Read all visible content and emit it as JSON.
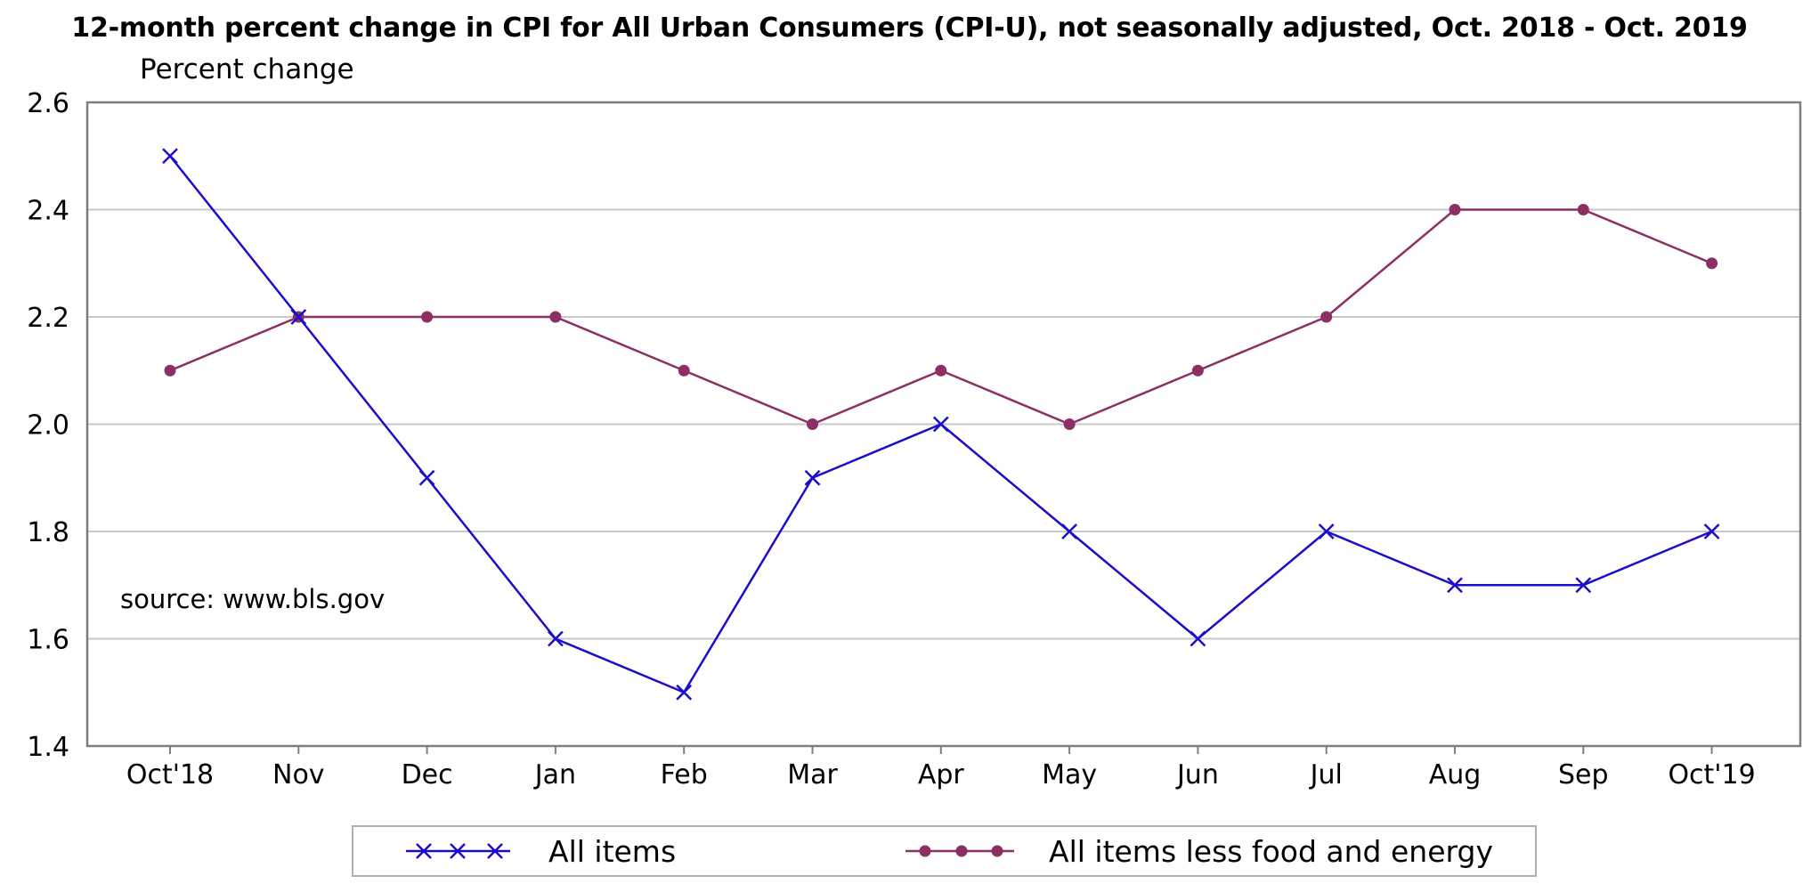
{
  "chart_data": {
    "type": "line",
    "title": "12-month percent change in CPI for All Urban Consumers (CPI-U), not seasonally adjusted, Oct. 2018 - Oct. 2019",
    "ylabel": "Percent change",
    "xlabel": "",
    "ylim": [
      1.4,
      2.6
    ],
    "yticks": [
      "1.4",
      "1.6",
      "1.8",
      "2.0",
      "2.2",
      "2.4",
      "2.6"
    ],
    "categories": [
      "Oct'18",
      "Nov",
      "Dec",
      "Jan",
      "Feb",
      "Mar",
      "Apr",
      "May",
      "Jun",
      "Jul",
      "Aug",
      "Sep",
      "Oct'19"
    ],
    "series": [
      {
        "name": "All items",
        "marker": "x",
        "color": "#1a0dcc",
        "values": [
          2.5,
          2.2,
          1.9,
          1.6,
          1.5,
          1.9,
          2.0,
          1.8,
          1.6,
          1.8,
          1.7,
          1.7,
          1.8
        ]
      },
      {
        "name": "All items less food and energy",
        "marker": "circle",
        "color": "#8c2f62",
        "values": [
          2.1,
          2.2,
          2.2,
          2.2,
          2.1,
          2.0,
          2.1,
          2.0,
          2.1,
          2.2,
          2.4,
          2.4,
          2.3
        ]
      }
    ],
    "grid": "horizontal",
    "legend_position": "bottom",
    "annotation": "source: www.bls.gov"
  }
}
